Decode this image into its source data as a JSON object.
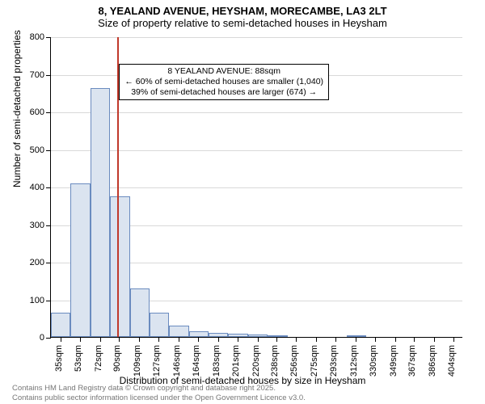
{
  "title": {
    "line1": "8, YEALAND AVENUE, HEYSHAM, MORECAMBE, LA3 2LT",
    "line2": "Size of property relative to semi-detached houses in Heysham"
  },
  "axes": {
    "y_label": "Number of semi-detached properties",
    "x_label": "Distribution of semi-detached houses by size in Heysham",
    "ylim": [
      0,
      800
    ],
    "y_ticks": [
      0,
      100,
      200,
      300,
      400,
      500,
      600,
      700,
      800
    ],
    "x_categories": [
      "35sqm",
      "53sqm",
      "72sqm",
      "90sqm",
      "109sqm",
      "127sqm",
      "146sqm",
      "164sqm",
      "183sqm",
      "201sqm",
      "220sqm",
      "238sqm",
      "256sqm",
      "275sqm",
      "293sqm",
      "312sqm",
      "330sqm",
      "349sqm",
      "367sqm",
      "386sqm",
      "404sqm"
    ],
    "x_values": [
      35,
      53,
      72,
      90,
      109,
      127,
      146,
      164,
      183,
      201,
      220,
      238,
      256,
      275,
      293,
      312,
      330,
      349,
      367,
      386,
      404
    ],
    "xlim": [
      26,
      413
    ],
    "tick_fontsize": 11,
    "label_fontsize": 12,
    "grid_color": "#d9d9d9"
  },
  "histogram": {
    "type": "histogram",
    "bar_color": "#dbe4f0",
    "bar_border": "#6a8bbf",
    "bar_border_width": 1,
    "bin_left_edges": [
      26,
      44.5,
      63,
      81.5,
      100,
      118.5,
      137,
      155.5,
      174,
      192.5,
      211,
      229.5,
      248,
      266.5,
      285,
      303.5,
      322
    ],
    "bin_right_edges": [
      44.5,
      63,
      81.5,
      100,
      118.5,
      137,
      155.5,
      174,
      192.5,
      211,
      229.5,
      248,
      266.5,
      285,
      303.5,
      322,
      340.5
    ],
    "counts": [
      65,
      408,
      662,
      375,
      130,
      65,
      30,
      15,
      10,
      8,
      6,
      4,
      0,
      0,
      0,
      3,
      0
    ]
  },
  "reference_line": {
    "x_value": 88,
    "color": "#c0392b"
  },
  "annotation": {
    "line1": "8 YEALAND AVENUE: 88sqm",
    "line2": "← 60% of semi-detached houses are smaller (1,040)",
    "line3": "39% of semi-detached houses are larger (674) →",
    "top_at_y": 730,
    "left_at_x": 90
  },
  "footer": {
    "line1": "Contains HM Land Registry data © Crown copyright and database right 2025.",
    "line2": "Contains public sector information licensed under the Open Government Licence v3.0."
  },
  "colors": {
    "background": "#ffffff",
    "text": "#000000",
    "footer_text": "#777777"
  }
}
